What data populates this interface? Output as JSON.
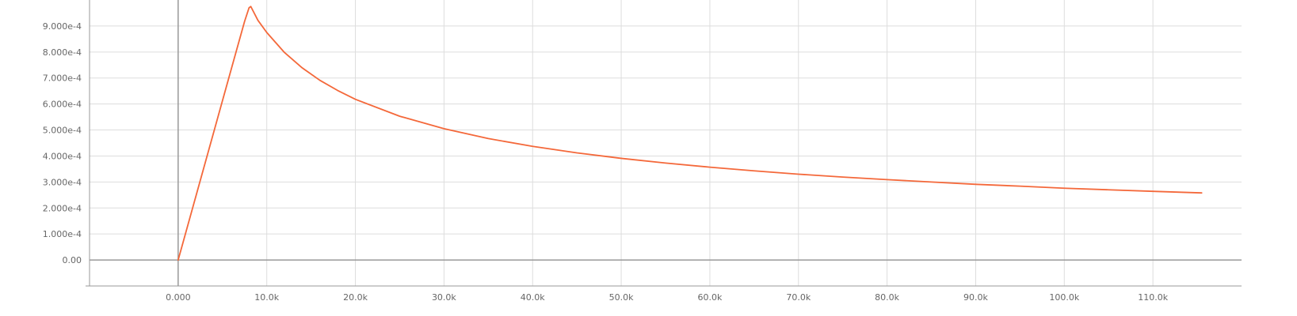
{
  "chart_data": {
    "type": "line",
    "title": "",
    "xlabel": "",
    "ylabel": "",
    "xlim": [
      -10000,
      120000
    ],
    "ylim": [
      -0.0001,
      0.001
    ],
    "grid": true,
    "colors": {
      "line": "#f4683a",
      "grid": "#dddddd",
      "axis": "#999999",
      "tick_text": "#666666"
    },
    "x_ticks": [
      {
        "value": 0,
        "label": "0.000"
      },
      {
        "value": 10000,
        "label": "10.0k"
      },
      {
        "value": 20000,
        "label": "20.0k"
      },
      {
        "value": 30000,
        "label": "30.0k"
      },
      {
        "value": 40000,
        "label": "40.0k"
      },
      {
        "value": 50000,
        "label": "50.0k"
      },
      {
        "value": 60000,
        "label": "60.0k"
      },
      {
        "value": 70000,
        "label": "70.0k"
      },
      {
        "value": 80000,
        "label": "80.0k"
      },
      {
        "value": 90000,
        "label": "90.0k"
      },
      {
        "value": 100000,
        "label": "100.0k"
      },
      {
        "value": 110000,
        "label": "110.0k"
      }
    ],
    "y_ticks": [
      {
        "value": 0,
        "label": "0.00"
      },
      {
        "value": 0.0001,
        "label": "1.000e-4"
      },
      {
        "value": 0.0002,
        "label": "2.000e-4"
      },
      {
        "value": 0.0003,
        "label": "3.000e-4"
      },
      {
        "value": 0.0004,
        "label": "4.000e-4"
      },
      {
        "value": 0.0005,
        "label": "5.000e-4"
      },
      {
        "value": 0.0006,
        "label": "6.000e-4"
      },
      {
        "value": 0.0007,
        "label": "7.000e-4"
      },
      {
        "value": 0.0008,
        "label": "8.000e-4"
      },
      {
        "value": 0.0009,
        "label": "9.000e-4"
      }
    ],
    "series": [
      {
        "x": [
          0,
          2000,
          4000,
          6000,
          7500,
          8000,
          8200,
          9000,
          10000,
          12000,
          14000,
          16000,
          18000,
          20000,
          25000,
          30000,
          35000,
          40000,
          45000,
          50000,
          55000,
          60000,
          65000,
          70000,
          75000,
          80000,
          85000,
          90000,
          95000,
          100000,
          105000,
          110000,
          115500
        ],
        "y": [
          0,
          0.000245,
          0.00049,
          0.000735,
          0.000918,
          0.00097,
          0.000975,
          0.000922,
          0.000875,
          0.000798,
          0.000739,
          0.000691,
          0.000652,
          0.000618,
          0.000553,
          0.000505,
          0.000467,
          0.000437,
          0.000412,
          0.000391,
          0.000373,
          0.000357,
          0.000343,
          0.00033,
          0.000319,
          0.000309,
          0.0003,
          0.000291,
          0.000284,
          0.000276,
          0.00027,
          0.000264,
          0.000258
        ]
      }
    ]
  }
}
